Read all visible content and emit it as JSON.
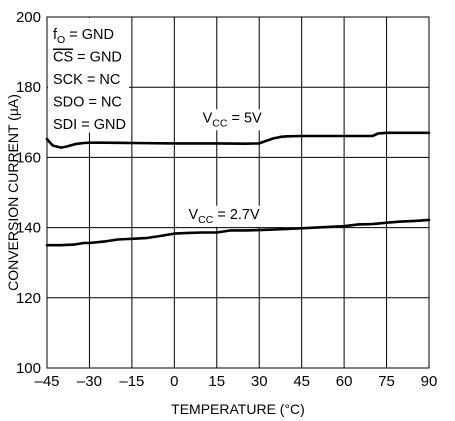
{
  "chart_data": {
    "type": "line",
    "title": "",
    "xlabel": "TEMPERATURE (°C)",
    "ylabel": "CONVERSION CURRENT (µA)",
    "xlim": [
      -45,
      90
    ],
    "ylim": [
      100,
      200
    ],
    "x_ticks": [
      -45,
      -30,
      -15,
      0,
      15,
      30,
      45,
      60,
      75,
      90
    ],
    "y_ticks": [
      100,
      120,
      140,
      160,
      180,
      200
    ],
    "x_tick_labels": [
      "–45",
      "–30",
      "–15",
      "0",
      "15",
      "30",
      "45",
      "60",
      "75",
      "90"
    ],
    "y_tick_labels": [
      "100",
      "120",
      "140",
      "160",
      "180",
      "200"
    ],
    "grid": true,
    "conditions": [
      {
        "main": "f",
        "sub": "O",
        "rest": " = GND"
      },
      {
        "main": "CS",
        "overline": true,
        "rest": " = GND"
      },
      {
        "main": "SCK",
        "rest": " = NC"
      },
      {
        "main": "SDO",
        "rest": " = NC"
      },
      {
        "main": "SDI",
        "rest": " = GND"
      }
    ],
    "series_labels": [
      {
        "main": "V",
        "sub": "CC",
        "rest": " = 5V",
        "at": [
          10,
          170
        ]
      },
      {
        "main": "V",
        "sub": "CC",
        "rest": " = 2.7V",
        "at": [
          5,
          142.5
        ]
      }
    ],
    "series": [
      {
        "x": [
          -45,
          -43,
          -40,
          -38,
          -35,
          -32,
          -30,
          -25,
          -15,
          0,
          15,
          25,
          30,
          32,
          35,
          38,
          40,
          45,
          55,
          65,
          70,
          72,
          75,
          80,
          90
        ],
        "y": [
          165.2,
          163.4,
          162.8,
          163.1,
          163.8,
          164.1,
          164.2,
          164.2,
          164.1,
          164.0,
          164.0,
          163.9,
          164.0,
          164.6,
          165.4,
          165.9,
          166.0,
          166.1,
          166.1,
          166.1,
          166.1,
          166.8,
          167.0,
          167.0,
          167.0
        ]
      },
      {
        "x": [
          -45,
          -40,
          -35,
          -32,
          -30,
          -25,
          -20,
          -15,
          -10,
          -5,
          0,
          5,
          10,
          15,
          20,
          25,
          30,
          40,
          50,
          60,
          65,
          70,
          75,
          80,
          85,
          90
        ],
        "y": [
          135.0,
          135.0,
          135.2,
          135.6,
          135.6,
          136.0,
          136.6,
          136.8,
          137.0,
          137.6,
          138.3,
          138.5,
          138.6,
          138.6,
          139.2,
          139.2,
          139.3,
          139.6,
          140.0,
          140.4,
          140.9,
          141.0,
          141.4,
          141.7,
          141.9,
          142.2
        ]
      }
    ]
  }
}
